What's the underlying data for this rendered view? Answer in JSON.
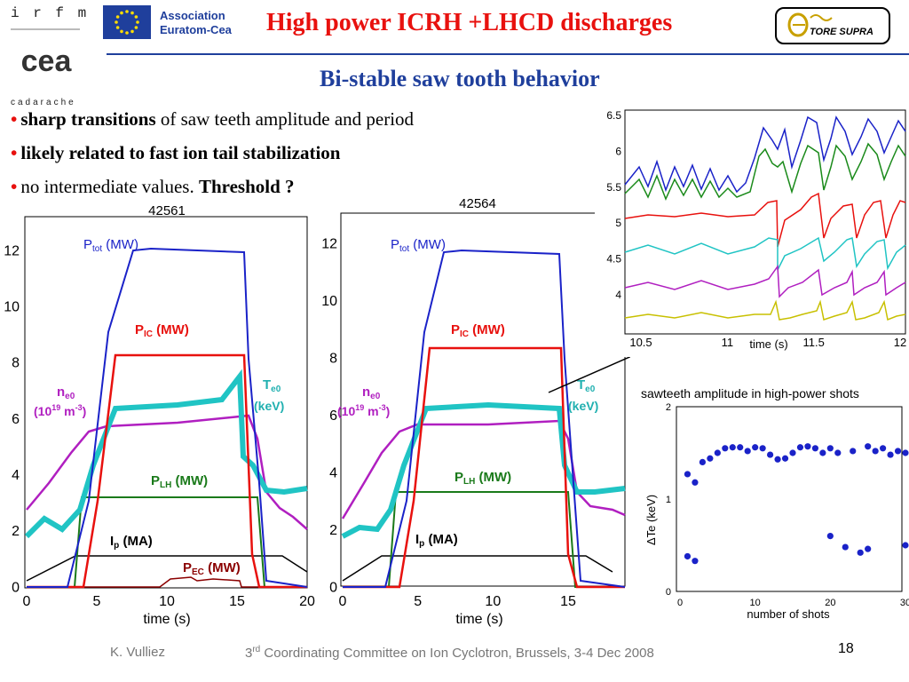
{
  "header": {
    "logo_irfm": "i r f m",
    "logo_cea": "cea",
    "logo_cadarache": "cadarache",
    "association_line1": "Association",
    "association_line2": "Euratom-Cea",
    "title": "High power ICRH +LHCD discharges",
    "tore_supra": "TORE SUPRA",
    "colors": {
      "title": "#e8110e",
      "accent": "#1f3f9c"
    }
  },
  "subtitle": "Bi-stable saw tooth behavior",
  "bullets": [
    {
      "bold": "sharp transitions",
      "rest": " of saw teeth amplitude and period"
    },
    {
      "bold": "likely related to fast ion tail stabilization",
      "rest": ""
    },
    {
      "plain": "no intermediate values. ",
      "bold": "Threshold ?"
    }
  ],
  "plot_left": {
    "title": "42561",
    "xlabel": "time (s)",
    "xticks": [
      "0",
      "5",
      "10",
      "15",
      "20"
    ],
    "yticks": [
      "0",
      "2",
      "4",
      "6",
      "8",
      "10",
      "12"
    ],
    "labels": {
      "ptot": "P",
      "ptot_sub": "tot",
      "ptot_unit": " (MW)",
      "pic": "P",
      "pic_sub": "IC",
      "pic_unit": " (MW)",
      "ne0": "n",
      "ne0_sub": "e0",
      "ne0_unit_a": "(10",
      "ne0_unit_sup": "19",
      "ne0_unit_b": " m",
      "ne0_unit_sup2": "-3",
      "ne0_unit_c": ")",
      "te0": "T",
      "te0_sub": "e0",
      "te0_unit": "(keV)",
      "plh": "P",
      "plh_sub": "LH",
      "plh_unit": " (MW)",
      "ip": "I",
      "ip_sub": "p",
      "ip_unit": " (MA)",
      "pec": "P",
      "pec_sub": "EC",
      "pec_unit": " (MW)"
    }
  },
  "plot_right": {
    "title": "42564",
    "xlabel": "time (s)",
    "xticks": [
      "0",
      "5",
      "10",
      "15"
    ],
    "yticks": [
      "0",
      "2",
      "4",
      "6",
      "8",
      "10",
      "12"
    ],
    "labels": {
      "ptot": "P",
      "ptot_sub": "tot",
      "ptot_unit": " (MW)",
      "pic": "P",
      "pic_sub": "IC",
      "pic_unit": " (MW)",
      "ne0": "n",
      "ne0_sub": "e0",
      "ne0_unit_a": "(10",
      "ne0_unit_sup": "19",
      "ne0_unit_b": " m",
      "ne0_unit_sup2": "-3",
      "ne0_unit_c": ")",
      "te0": "T",
      "te0_sub": "e0",
      "te0_unit": "(keV)",
      "plh": "P",
      "plh_sub": "LH",
      "plh_unit": " (MW)",
      "ip": "I",
      "ip_sub": "p",
      "ip_unit": " (MA)"
    }
  },
  "inset_zoom": {
    "xticks": [
      "10.5",
      "11",
      "11.5",
      "12"
    ],
    "yticks": [
      "4",
      "4.5",
      "5",
      "5.5",
      "6",
      "6.5"
    ],
    "xlabel": "time (s)"
  },
  "chart_data": {
    "type": "scatter",
    "title": "sawteeth amplitude in high-power shots",
    "xlabel": "number of shots",
    "ylabel": "ΔTe (keV)",
    "xlim": [
      0,
      30
    ],
    "ylim": [
      0,
      2
    ],
    "xticks": [
      "0",
      "10",
      "20",
      "30"
    ],
    "yticks": [
      "0",
      "1",
      "2"
    ],
    "color": "#1a22c8",
    "points": [
      [
        1,
        1.27
      ],
      [
        1,
        0.38
      ],
      [
        2,
        1.18
      ],
      [
        2,
        0.33
      ],
      [
        3,
        1.4
      ],
      [
        4,
        1.44
      ],
      [
        5,
        1.5
      ],
      [
        6,
        1.55
      ],
      [
        7,
        1.56
      ],
      [
        8,
        1.56
      ],
      [
        9,
        1.52
      ],
      [
        10,
        1.56
      ],
      [
        11,
        1.55
      ],
      [
        12,
        1.48
      ],
      [
        13,
        1.43
      ],
      [
        14,
        1.44
      ],
      [
        15,
        1.5
      ],
      [
        16,
        1.56
      ],
      [
        17,
        1.57
      ],
      [
        18,
        1.55
      ],
      [
        19,
        1.5
      ],
      [
        20,
        1.55
      ],
      [
        20,
        0.6
      ],
      [
        21,
        1.5
      ],
      [
        22,
        0.48
      ],
      [
        23,
        1.52
      ],
      [
        24,
        0.42
      ],
      [
        25,
        1.57
      ],
      [
        25,
        0.46
      ],
      [
        26,
        1.52
      ],
      [
        27,
        1.55
      ],
      [
        28,
        1.48
      ],
      [
        29,
        1.52
      ],
      [
        30,
        1.5
      ],
      [
        30,
        0.5
      ]
    ]
  },
  "footer": {
    "author": "K. Vulliez",
    "conf_sup": "rd",
    "conf_num": "3",
    "conf_rest": " Coordinating Committee on Ion Cyclotron, Brussels, 3-4 Dec 2008",
    "page": "18"
  }
}
